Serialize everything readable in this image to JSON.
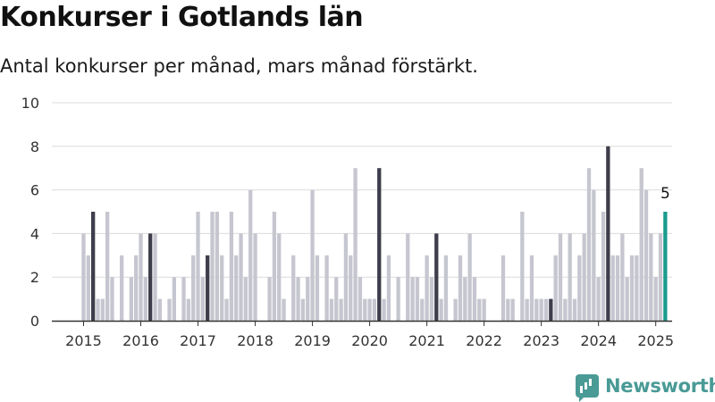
{
  "header": {
    "title": "Konkurser i Gotlands län",
    "subtitle": "Antal konkurser per månad, mars månad förstärkt."
  },
  "brand": {
    "name": "Newsworthy",
    "icon": "chart-logo-icon",
    "color": "#4a9a96"
  },
  "chart_data": {
    "type": "bar",
    "title": "Konkurser i Gotlands län",
    "subtitle": "Antal konkurser per månad, mars månad förstärkt.",
    "xlabel": "",
    "ylabel": "",
    "ylim": [
      0,
      10
    ],
    "yticks": [
      0,
      2,
      4,
      6,
      8,
      10
    ],
    "xtick_labels": [
      "2015",
      "2016",
      "2017",
      "2018",
      "2019",
      "2020",
      "2021",
      "2022",
      "2023",
      "2024",
      "2025"
    ],
    "grid": true,
    "start_month": "2015-01",
    "months": [
      "2015-01",
      "2015-02",
      "2015-03",
      "2015-04",
      "2015-05",
      "2015-06",
      "2015-07",
      "2015-08",
      "2015-09",
      "2015-10",
      "2015-11",
      "2015-12",
      "2016-01",
      "2016-02",
      "2016-03",
      "2016-04",
      "2016-05",
      "2016-06",
      "2016-07",
      "2016-08",
      "2016-09",
      "2016-10",
      "2016-11",
      "2016-12",
      "2017-01",
      "2017-02",
      "2017-03",
      "2017-04",
      "2017-05",
      "2017-06",
      "2017-07",
      "2017-08",
      "2017-09",
      "2017-10",
      "2017-11",
      "2017-12",
      "2018-01",
      "2018-02",
      "2018-03",
      "2018-04",
      "2018-05",
      "2018-06",
      "2018-07",
      "2018-08",
      "2018-09",
      "2018-10",
      "2018-11",
      "2018-12",
      "2019-01",
      "2019-02",
      "2019-03",
      "2019-04",
      "2019-05",
      "2019-06",
      "2019-07",
      "2019-08",
      "2019-09",
      "2019-10",
      "2019-11",
      "2019-12",
      "2020-01",
      "2020-02",
      "2020-03",
      "2020-04",
      "2020-05",
      "2020-06",
      "2020-07",
      "2020-08",
      "2020-09",
      "2020-10",
      "2020-11",
      "2020-12",
      "2021-01",
      "2021-02",
      "2021-03",
      "2021-04",
      "2021-05",
      "2021-06",
      "2021-07",
      "2021-08",
      "2021-09",
      "2021-10",
      "2021-11",
      "2021-12",
      "2022-01",
      "2022-02",
      "2022-03",
      "2022-04",
      "2022-05",
      "2022-06",
      "2022-07",
      "2022-08",
      "2022-09",
      "2022-10",
      "2022-11",
      "2022-12",
      "2023-01",
      "2023-02",
      "2023-03",
      "2023-04",
      "2023-05",
      "2023-06",
      "2023-07",
      "2023-08",
      "2023-09",
      "2023-10",
      "2023-11",
      "2023-12",
      "2024-01",
      "2024-02",
      "2024-03",
      "2024-04",
      "2024-05",
      "2024-06",
      "2024-07",
      "2024-08",
      "2024-09",
      "2024-10",
      "2024-11",
      "2024-12",
      "2025-01",
      "2025-02",
      "2025-03"
    ],
    "values": [
      4,
      3,
      5,
      1,
      1,
      5,
      2,
      0,
      3,
      0,
      2,
      3,
      4,
      2,
      4,
      4,
      1,
      0,
      1,
      2,
      0,
      2,
      1,
      3,
      5,
      2,
      3,
      5,
      5,
      3,
      1,
      5,
      3,
      4,
      2,
      6,
      4,
      0,
      0,
      2,
      5,
      4,
      1,
      0,
      3,
      2,
      1,
      2,
      6,
      3,
      0,
      3,
      1,
      2,
      1,
      4,
      3,
      7,
      2,
      1,
      1,
      1,
      7,
      1,
      3,
      0,
      2,
      0,
      4,
      2,
      2,
      1,
      3,
      2,
      4,
      1,
      3,
      0,
      1,
      3,
      2,
      4,
      2,
      1,
      1,
      0,
      0,
      0,
      3,
      1,
      1,
      0,
      5,
      1,
      3,
      1,
      1,
      1,
      1,
      3,
      4,
      1,
      4,
      1,
      3,
      4,
      7,
      6,
      2,
      5,
      8,
      3,
      3,
      4,
      2,
      3,
      3,
      7,
      6,
      4,
      2,
      4,
      5
    ],
    "highlight_month": 3,
    "last_value_label": "5",
    "colors": {
      "bar": "#c6c6d0",
      "march": "#3d3d4b",
      "latest": "#1a9b8e",
      "grid": "#dcdcdc",
      "axis": "#333333"
    }
  }
}
